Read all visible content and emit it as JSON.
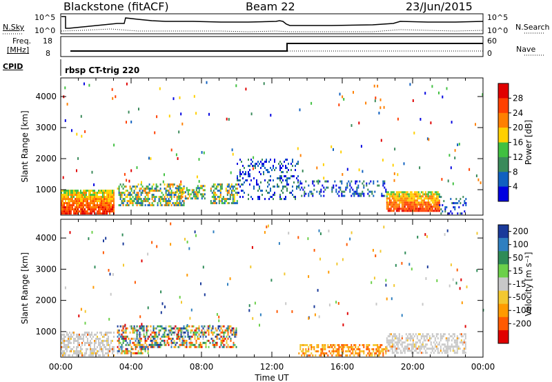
{
  "header": {
    "radar": "Blackstone (fitACF)",
    "beam": "Beam 22",
    "date": "23/Jun/2015"
  },
  "status_panels": {
    "nsky_label": "N.Sky",
    "nsearch_label": "N.Search",
    "nsky_ticks": [
      "10^5",
      "10^0"
    ],
    "nsearch_ticks": [
      "10^5",
      "10^0"
    ],
    "freq_label_1": "Freq.",
    "freq_label_2": "[MHz]",
    "freq_ticks": [
      "18",
      "8"
    ],
    "nave_label": "Nave",
    "nave_ticks": [
      "60",
      "0"
    ],
    "cpid_label": "CPID",
    "cpid_value": "rbsp CT-trig 220"
  },
  "chart_data": [
    {
      "type": "heatmap",
      "title": "",
      "xlabel": "",
      "ylabel": "Slant Range [km]",
      "xlim": [
        0,
        24
      ],
      "ylim": [
        180,
        4600
      ],
      "yticks": [
        1000,
        2000,
        3000,
        4000
      ],
      "colorbar": {
        "label": "Power [dB]",
        "ticks": [
          "28",
          "24",
          "20",
          "16",
          "12",
          "8",
          "4"
        ],
        "colors": [
          "#e00000",
          "#ff4000",
          "#ff8000",
          "#ffd000",
          "#40c040",
          "#3a8a5a",
          "#1060c0",
          "#0000e0"
        ]
      },
      "regions": [
        {
          "t0": 0.0,
          "t1": 3.0,
          "r0": 250,
          "r1": 1000,
          "level": "strong"
        },
        {
          "t0": 3.2,
          "t1": 7.0,
          "r0": 500,
          "r1": 1200,
          "level": "moderate"
        },
        {
          "t0": 6.5,
          "t1": 8.2,
          "r0": 700,
          "r1": 1150,
          "level": "moderate"
        },
        {
          "t0": 8.5,
          "t1": 10.0,
          "r0": 600,
          "r1": 1200,
          "level": "moderate"
        },
        {
          "t0": 10.0,
          "t1": 13.5,
          "r0": 700,
          "r1": 2000,
          "level": "weak"
        },
        {
          "t0": 13.5,
          "t1": 18.5,
          "r0": 800,
          "r1": 1300,
          "level": "weak"
        },
        {
          "t0": 18.5,
          "t1": 21.5,
          "r0": 300,
          "r1": 950,
          "level": "strong"
        },
        {
          "t0": 21.5,
          "t1": 23.0,
          "r0": 250,
          "r1": 800,
          "level": "weak"
        }
      ]
    },
    {
      "type": "heatmap",
      "title": "",
      "xlabel": "Time UT",
      "ylabel": "Slant Range [km]",
      "xlim": [
        0,
        24
      ],
      "ylim": [
        180,
        4600
      ],
      "xticks": [
        "00:00",
        "04:00",
        "08:00",
        "12:00",
        "16:00",
        "20:00",
        "00:00"
      ],
      "yticks": [
        1000,
        2000,
        3000,
        4000
      ],
      "colorbar": {
        "label": "Velocity [m s⁻¹]",
        "ticks": [
          "200",
          "100",
          "50",
          "15",
          "-15",
          "-50",
          "-100",
          "-200"
        ],
        "colors": [
          "#1a3a9a",
          "#2f7fc0",
          "#2e8b57",
          "#6cd04a",
          "#c8c8c8",
          "#f2c830",
          "#ff9a00",
          "#ff5a00",
          "#e00000"
        ]
      },
      "regions": [
        {
          "t0": 0.0,
          "t1": 3.0,
          "r0": 250,
          "r1": 1000,
          "level": "ground-scatter"
        },
        {
          "t0": 3.2,
          "t1": 5.0,
          "r0": 300,
          "r1": 1200,
          "level": "mixed"
        },
        {
          "t0": 5.0,
          "t1": 10.0,
          "r0": 500,
          "r1": 1200,
          "level": "mixed"
        },
        {
          "t0": 13.5,
          "t1": 18.5,
          "r0": 250,
          "r1": 600,
          "level": "negative"
        },
        {
          "t0": 18.5,
          "t1": 23.0,
          "r0": 300,
          "r1": 950,
          "level": "ground-scatter"
        }
      ]
    }
  ]
}
